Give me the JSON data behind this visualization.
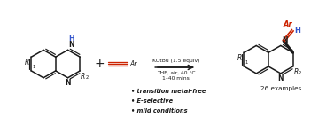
{
  "bg_color": "#ffffff",
  "arrow_color": "#000000",
  "arrow_above": "KOtBu (1.5 equiv)",
  "arrow_line1": "THF, air, 40 °C",
  "arrow_line2": "1–40 mins",
  "bullet1": "• transition metal-free",
  "bullet2": "• E-selective",
  "bullet3": "• mild conditions",
  "examples_text": "26 examples",
  "blue_color": "#3355cc",
  "red_color": "#cc2200",
  "black_color": "#1a1a1a"
}
